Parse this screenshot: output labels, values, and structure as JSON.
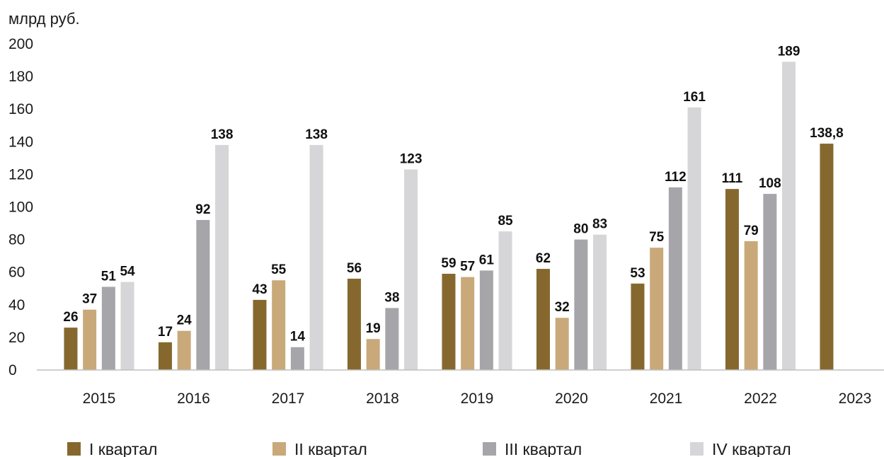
{
  "chart_data": {
    "type": "bar",
    "unit_label": "млрд руб.",
    "categories": [
      "2015",
      "2016",
      "2017",
      "2018",
      "2019",
      "2020",
      "2021",
      "2022",
      "2023"
    ],
    "series": [
      {
        "name": "I квартал",
        "color": "#86682f",
        "values": [
          26,
          17,
          43,
          56,
          59,
          62,
          53,
          111,
          138.8
        ],
        "labels": [
          "26",
          "17",
          "43",
          "56",
          "59",
          "62",
          "53",
          "111",
          "138,8"
        ]
      },
      {
        "name": "II квартал",
        "color": "#c9a97a",
        "values": [
          37,
          24,
          55,
          19,
          57,
          32,
          75,
          79,
          null
        ],
        "labels": [
          "37",
          "24",
          "55",
          "19",
          "57",
          "32",
          "75",
          "79",
          ""
        ]
      },
      {
        "name": "III квартал",
        "color": "#a6a6aa",
        "values": [
          51,
          92,
          14,
          38,
          61,
          80,
          112,
          108,
          null
        ],
        "labels": [
          "51",
          "92",
          "14",
          "38",
          "61",
          "80",
          "112",
          "108",
          ""
        ]
      },
      {
        "name": "IV квартал",
        "color": "#d6d6d8",
        "values": [
          54,
          138,
          138,
          123,
          85,
          83,
          161,
          189,
          null
        ],
        "labels": [
          "54",
          "138",
          "138",
          "123",
          "85",
          "83",
          "161",
          "189",
          ""
        ]
      }
    ],
    "yticks": [
      "0",
      "20",
      "40",
      "60",
      "80",
      "100",
      "120",
      "140",
      "160",
      "180",
      "200"
    ],
    "ylim": [
      0,
      200
    ],
    "grid": false,
    "legend_position": "bottom"
  }
}
